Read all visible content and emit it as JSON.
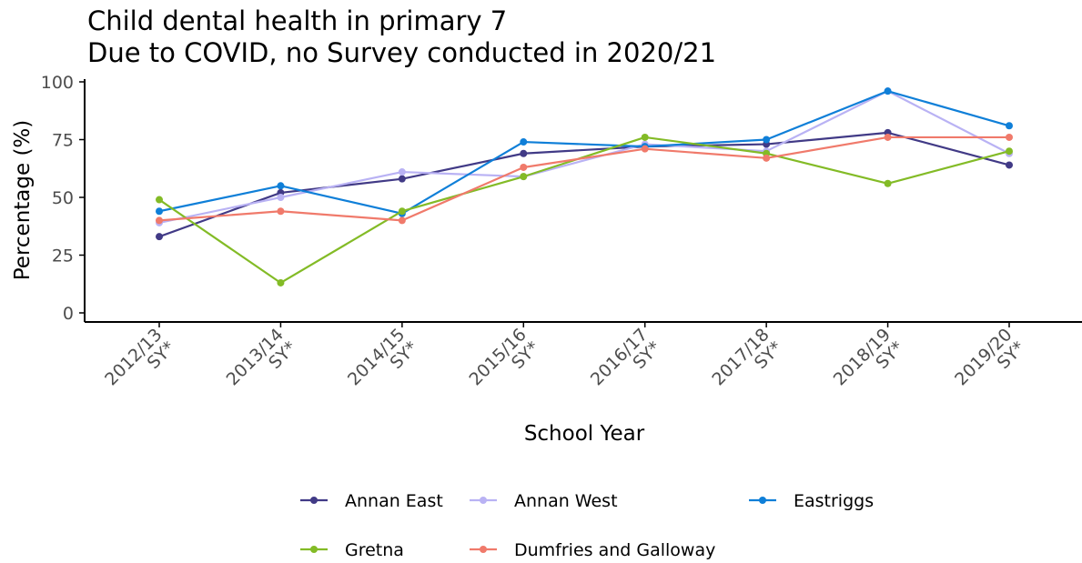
{
  "chart_data": {
    "type": "line",
    "title": [
      "Child dental health in primary 7",
      "Due to COVID, no Survey conducted in 2020/21"
    ],
    "xlabel": "School Year",
    "ylabel": "Percentage (%)",
    "ylim": [
      0,
      100
    ],
    "yticks": [
      "0",
      "25",
      "50",
      "75",
      "100"
    ],
    "categories": [
      [
        "2012/13",
        "SY*"
      ],
      [
        "2013/14",
        "SY*"
      ],
      [
        "2014/15",
        "SY*"
      ],
      [
        "2015/16",
        "SY*"
      ],
      [
        "2016/17",
        "SY*"
      ],
      [
        "2017/18",
        "SY*"
      ],
      [
        "2018/19",
        "SY*"
      ],
      [
        "2019/20",
        "SY*"
      ]
    ],
    "grid": false,
    "legend_position": "bottom",
    "series": [
      {
        "name": "Annan East",
        "color": "#413A86",
        "values": [
          33,
          52,
          58,
          69,
          72,
          73,
          78,
          64
        ]
      },
      {
        "name": "Annan West",
        "color": "#B9B2F4",
        "values": [
          39,
          50,
          61,
          59,
          73,
          70,
          96,
          69
        ]
      },
      {
        "name": "Eastriggs",
        "color": "#0F7FD8",
        "values": [
          44,
          55,
          43,
          74,
          72,
          75,
          96,
          81
        ]
      },
      {
        "name": "Gretna",
        "color": "#83BB26",
        "values": [
          49,
          13,
          44,
          59,
          76,
          69,
          56,
          70
        ]
      },
      {
        "name": "Dumfries and Galloway",
        "color": "#F07A6B",
        "values": [
          40,
          44,
          40,
          63,
          71,
          67,
          76,
          76
        ]
      }
    ],
    "legend_order": [
      [
        "Annan East",
        "Annan West",
        "Eastriggs"
      ],
      [
        "Gretna",
        "Dumfries and Galloway"
      ]
    ]
  }
}
